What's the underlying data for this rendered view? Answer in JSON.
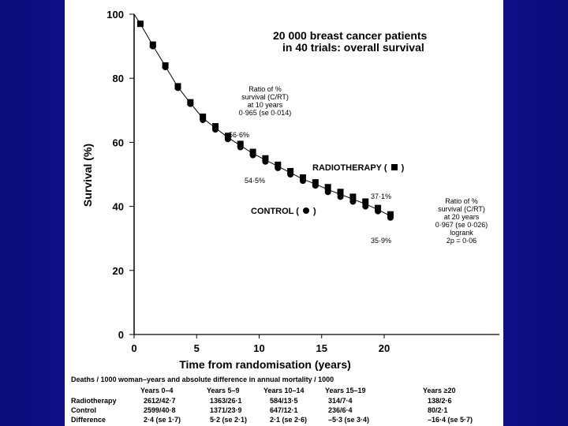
{
  "chart_data": {
    "type": "scatter",
    "title": "20 000 breast cancer patients",
    "subtitle": "in 40 trials: overall survival",
    "xlabel": "Time from randomisation (years)",
    "ylabel": "Survival (%)",
    "xlim": [
      0,
      20
    ],
    "ylim": [
      0,
      100
    ],
    "xticks": [
      "0",
      "5",
      "10",
      "15",
      "20"
    ],
    "yticks": [
      "0",
      "20",
      "40",
      "60",
      "80",
      "100"
    ],
    "series": [
      {
        "name": "RADIOTHERAPY",
        "marker": "square",
        "x": [
          0.5,
          1.5,
          2.5,
          3.5,
          4.5,
          5.5,
          6.5,
          7.5,
          8.5,
          9.5,
          10.5,
          11.5,
          12.5,
          13.5,
          14.5,
          15.5,
          16.5,
          17.5,
          18.5,
          19.5,
          20.5
        ],
        "values": [
          97.0,
          90.5,
          84.0,
          77.5,
          72.5,
          68.0,
          65.0,
          62.0,
          59.5,
          57.0,
          55.0,
          53.0,
          51.0,
          49.0,
          47.5,
          46.0,
          44.5,
          43.0,
          41.5,
          39.5,
          37.5
        ]
      },
      {
        "name": "CONTROL",
        "marker": "circle",
        "x": [
          0.5,
          1.5,
          2.5,
          3.5,
          4.5,
          5.5,
          6.5,
          7.5,
          8.5,
          9.5,
          10.5,
          11.5,
          12.5,
          13.5,
          14.5,
          15.5,
          16.5,
          17.5,
          18.5,
          19.5,
          20.5
        ],
        "values": [
          97.0,
          90.0,
          83.5,
          77.0,
          72.0,
          67.0,
          64.0,
          61.0,
          58.5,
          56.0,
          54.0,
          52.0,
          50.0,
          48.0,
          46.5,
          44.5,
          43.0,
          41.5,
          40.0,
          38.5,
          36.5
        ]
      }
    ],
    "annotations": {
      "ratio10": [
        "Ratio of %",
        "survival (C/RT)",
        "at 10 years",
        "0·965 (se 0·014)"
      ],
      "ratio20": [
        "Ratio of %",
        "survival (C/RT)",
        "at 20 years",
        "0·967 (se 0·026)",
        "logrank",
        "2p = 0·06"
      ],
      "rt10": "56·6%",
      "ctrl10": "54·5%",
      "rt20": "37·1%",
      "ctrl20": "35·9%",
      "legend_rt": "RADIOTHERAPY (",
      "legend_ctrl": "CONTROL (",
      "legend_close": ")"
    },
    "table": {
      "caption": "Deaths / 1000 woman–years and absolute difference in annual mortality / 1000",
      "headers": [
        "Years 0–4",
        "Years 5–9",
        "Years 10–14",
        "Years 15–19",
        "Years ≥20"
      ],
      "rows": [
        {
          "label": "Radiotherapy",
          "cells": [
            "2612/42·7",
            "1363/26·1",
            "584/13·5",
            "314/7·4",
            "138/2·6"
          ]
        },
        {
          "label": "Control",
          "cells": [
            "2599/40·8",
            "1371/23·9",
            "647/12·1",
            "236/6·4",
            "80/2·1"
          ]
        },
        {
          "label": "Difference",
          "cells": [
            "2·4 (se 1·7)",
            "5·2 (se 2·1)",
            "2·1 (se 2·6)",
            "–5·3 (se 3·4)",
            "–16·4 (se 5·7)"
          ]
        }
      ]
    },
    "grid": false,
    "legend": "inline"
  },
  "colors": {
    "background": "#1c1cb8",
    "panel": "#ffffff",
    "ink": "#000000"
  }
}
